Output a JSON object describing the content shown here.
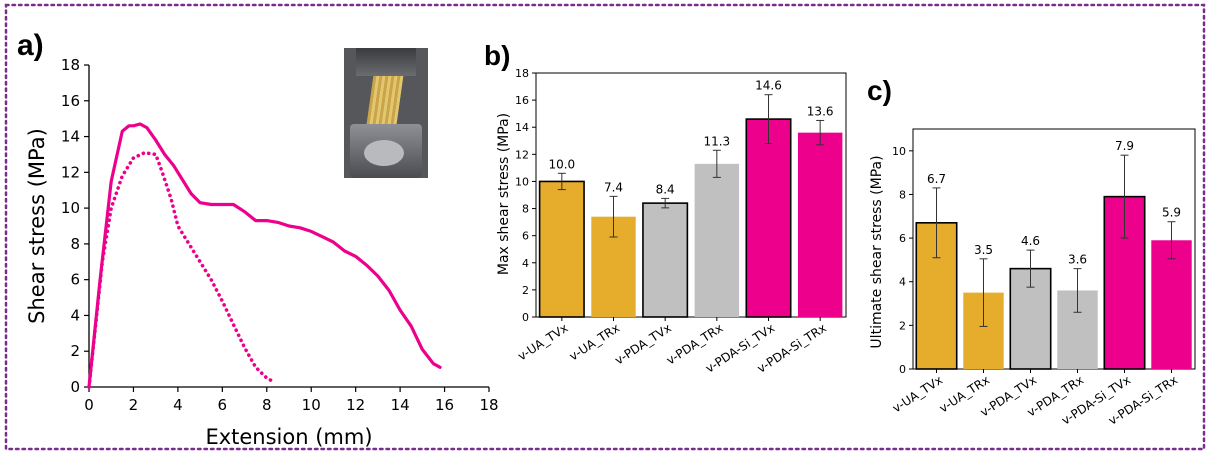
{
  "panels": {
    "a": {
      "label": "a)",
      "xlabel": "Extension (mm)",
      "ylabel": "Shear stress (MPa)",
      "x_ticks": [
        "0",
        "2",
        "4",
        "6",
        "8",
        "10",
        "12",
        "14",
        "16",
        "18"
      ],
      "y_ticks": [
        "0",
        "2",
        "4",
        "6",
        "8",
        "10",
        "12",
        "14",
        "16",
        "18"
      ]
    },
    "b": {
      "label": "b)",
      "ylabel": "Max shear stress (MPa)",
      "y_ticks": [
        "0",
        "2",
        "4",
        "6",
        "8",
        "10",
        "12",
        "14",
        "16",
        "18"
      ]
    },
    "c": {
      "label": "c)",
      "ylabel": "Ultimate shear stress (MPa)",
      "y_ticks": [
        "0",
        "2",
        "4",
        "6",
        "8",
        "10"
      ]
    }
  },
  "chart_data": [
    {
      "panel": "a",
      "type": "line",
      "xlabel": "Extension (mm)",
      "ylabel": "Shear stress (MPa)",
      "xlim": [
        0,
        18
      ],
      "ylim": [
        0,
        18
      ],
      "series": [
        {
          "style": "solid",
          "color": "#ec008c",
          "x": [
            0,
            0.5,
            1.0,
            1.5,
            1.8,
            2.0,
            2.3,
            2.6,
            3.0,
            3.4,
            3.8,
            4.2,
            4.6,
            5.0,
            5.5,
            6.0,
            6.5,
            7.0,
            7.5,
            8.0,
            8.5,
            9.0,
            9.5,
            10.0,
            10.5,
            11.0,
            11.5,
            12.0,
            12.5,
            13.0,
            13.5,
            14.0,
            14.5,
            15.0,
            15.5,
            15.8
          ],
          "y": [
            0,
            6.0,
            11.5,
            14.3,
            14.6,
            14.6,
            14.7,
            14.5,
            13.8,
            13.0,
            12.4,
            11.6,
            10.8,
            10.3,
            10.2,
            10.2,
            10.2,
            9.8,
            9.3,
            9.3,
            9.2,
            9.0,
            8.9,
            8.7,
            8.4,
            8.1,
            7.6,
            7.3,
            6.8,
            6.2,
            5.4,
            4.3,
            3.4,
            2.1,
            1.3,
            1.1
          ]
        },
        {
          "style": "dotted",
          "color": "#ec008c",
          "x": [
            0,
            0.3,
            0.6,
            1.0,
            1.5,
            2.0,
            2.5,
            3.0,
            3.3,
            3.7,
            4.0,
            4.5,
            5.0,
            5.5,
            6.0,
            6.5,
            7.0,
            7.5,
            8.0,
            8.3
          ],
          "y": [
            0,
            3.5,
            7.0,
            10.0,
            11.8,
            12.8,
            13.1,
            13.0,
            12.0,
            10.5,
            9.0,
            8.0,
            7.0,
            6.0,
            4.8,
            3.5,
            2.2,
            1.1,
            0.5,
            0.3
          ]
        }
      ]
    },
    {
      "panel": "b",
      "type": "bar",
      "ylabel": "Max shear stress (MPa)",
      "ylim": [
        0,
        18
      ],
      "categories": [
        "v-UA_TVx",
        "v-UA_TRx",
        "v-PDA_TVx",
        "v-PDA_TRx",
        "v-PDA-Si_TVx",
        "v-PDA-Si_TRx"
      ],
      "values": [
        10.0,
        7.4,
        8.4,
        11.3,
        14.6,
        13.6
      ],
      "value_labels": [
        "10.0",
        "7.4",
        "8.4",
        "11.3",
        "14.6",
        "13.6"
      ],
      "errors": [
        0.6,
        1.5,
        0.35,
        1.0,
        1.8,
        0.9
      ],
      "colors": [
        "#e6ac2c",
        "#e6ac2c",
        "#c0c0c0",
        "#c0c0c0",
        "#ec008c",
        "#ec008c"
      ],
      "outlined": [
        true,
        false,
        true,
        false,
        true,
        false
      ]
    },
    {
      "panel": "c",
      "type": "bar",
      "ylabel": "Ultimate shear stress (MPa)",
      "ylim": [
        0,
        11
      ],
      "categories": [
        "v-UA_TVx",
        "v-UA_TRx",
        "v-PDA_TVx",
        "v-PDA_TRx",
        "v-PDA-Si_TVx",
        "v-PDA-Si_TRx"
      ],
      "values": [
        6.7,
        3.5,
        4.6,
        3.6,
        7.9,
        5.9
      ],
      "value_labels": [
        "6.7",
        "3.5",
        "4.6",
        "3.6",
        "7.9",
        "5.9"
      ],
      "errors": [
        1.6,
        1.55,
        0.85,
        1.0,
        1.9,
        0.85
      ],
      "colors": [
        "#e6ac2c",
        "#e6ac2c",
        "#c0c0c0",
        "#c0c0c0",
        "#ec008c",
        "#ec008c"
      ],
      "outlined": [
        true,
        false,
        true,
        false,
        true,
        false
      ]
    }
  ]
}
